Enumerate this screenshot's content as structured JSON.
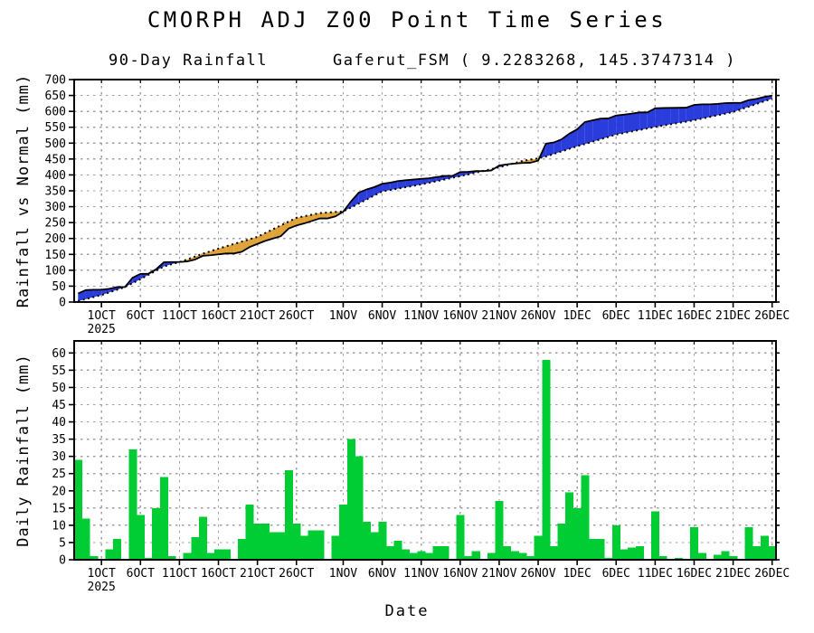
{
  "title": "CMORPH ADJ Z00 Point Time Series",
  "subtitle_left": "90-Day Rainfall",
  "subtitle_right": "Gaferut_FSM ( 9.2283268, 145.3747314 )",
  "xlabel": "Date",
  "year_label": "2025",
  "colors": {
    "above_normal_fill": "#2a3cdb",
    "below_normal_fill": "#e0a33a",
    "observed_line": "#000000",
    "normal_line": "#000000",
    "daily_bar": "#00cc33",
    "grid": "#a0a0a0",
    "axis": "#000000"
  },
  "chart_data": [
    {
      "type": "area",
      "title": "90-Day Rainfall cumulative: observed vs normal",
      "ylabel": "Rainfall vs Normal (mm)",
      "ylim": [
        0,
        700
      ],
      "ytick_step": 50,
      "ymax_draw": 700,
      "grid": true,
      "x_ticks": {
        "labels": [
          "1OCT",
          "6OCT",
          "11OCT",
          "16OCT",
          "21OCT",
          "26OCT",
          "1NOV",
          "6NOV",
          "11NOV",
          "16NOV",
          "21NOV",
          "26NOV",
          "1DEC",
          "6DEC",
          "11DEC",
          "16DEC",
          "21DEC",
          "26DEC"
        ],
        "day_index": [
          3,
          8,
          13,
          18,
          23,
          28,
          34,
          39,
          44,
          49,
          54,
          59,
          64,
          69,
          74,
          79,
          84,
          89
        ]
      },
      "x_range_days": 90,
      "x_start_date": "28SEP2025",
      "series": [
        {
          "name": "observed_cumulative",
          "style": "solid",
          "values": [
            26.8,
            37.8,
            38.8,
            38.8,
            41.5,
            47.1,
            47.1,
            76.6,
            88.6,
            89.1,
            102.9,
            125.1,
            126,
            126,
            127.8,
            133.8,
            145.4,
            147.2,
            150,
            152.8,
            152.8,
            158.3,
            173.1,
            182.8,
            192.4,
            199.8,
            207.2,
            231.2,
            240.9,
            247.4,
            255.2,
            263.1,
            263.1,
            269.5,
            284.3,
            316.6,
            344.3,
            354.4,
            361.8,
            372,
            375.7,
            380.7,
            383.5,
            385.4,
            387.7,
            389.5,
            393.2,
            396.9,
            396.9,
            408.9,
            409.8,
            412.1,
            412.1,
            414,
            429.7,
            433.3,
            435.7,
            437.5,
            438.4,
            444.9,
            498.4,
            502.1,
            511.8,
            529.8,
            543.6,
            566.3,
            571.8,
            577.3,
            577.8,
            587,
            589.8,
            593,
            596.7,
            596.7,
            609.6,
            610.6,
            610.9,
            611.3,
            611.6,
            620.3,
            622.2,
            622.2,
            623.6,
            625.9,
            626.8,
            626.8,
            635.6,
            639.3,
            645.7,
            649.4
          ]
        },
        {
          "name": "normal_cumulative",
          "style": "dotted",
          "anchors_day": [
            0,
            3,
            6,
            8,
            11,
            13,
            14,
            16,
            18,
            23,
            28,
            31,
            34,
            36,
            39,
            44,
            49,
            54,
            57,
            59,
            60,
            64,
            69,
            74,
            79,
            84,
            89
          ],
          "anchors_value": [
            3,
            22,
            47,
            72,
            112,
            126,
            134,
            152,
            168,
            205,
            265,
            280,
            285,
            310,
            348,
            370,
            396,
            424,
            444,
            452,
            458,
            490,
            527,
            551,
            572,
            598,
            640
          ]
        }
      ]
    },
    {
      "type": "bar",
      "title": "Daily rainfall",
      "ylabel": "Daily Rainfall (mm)",
      "ylim": [
        0,
        60
      ],
      "ytick_step": 5,
      "ymax_draw": 63.5,
      "grid": true,
      "x_range_days": 90,
      "x_start_date": "28SEP2025",
      "values": [
        29,
        12,
        1,
        0,
        3,
        6,
        0,
        32,
        13,
        0.5,
        15,
        24,
        1,
        0,
        2,
        6.5,
        12.5,
        2,
        3,
        3,
        0,
        6,
        16,
        10.5,
        10.5,
        8,
        8,
        26,
        10.5,
        7,
        8.5,
        8.5,
        0,
        7,
        16,
        35,
        30,
        11,
        8,
        11,
        4,
        5.5,
        3,
        2,
        2.5,
        2,
        4,
        4,
        0,
        13,
        1,
        2.5,
        0,
        2,
        17,
        4,
        2.5,
        2,
        1,
        7,
        58,
        4,
        10.5,
        19.5,
        15,
        24.5,
        6,
        6,
        0.5,
        10,
        3,
        3.5,
        4,
        0,
        14,
        1,
        0.3,
        0.5,
        0.3,
        9.5,
        2,
        0,
        1.5,
        2.5,
        1,
        0,
        9.5,
        4,
        7,
        4
      ]
    }
  ]
}
